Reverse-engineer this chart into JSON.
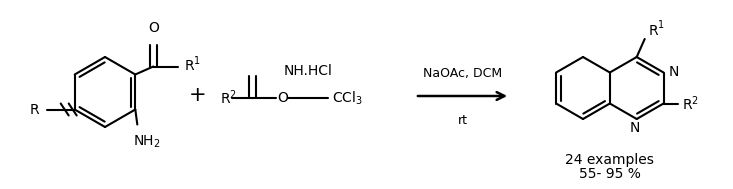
{
  "background_color": "#ffffff",
  "line_color": "#000000",
  "lw": 1.5,
  "figsize": [
    7.33,
    1.89
  ],
  "dpi": 100,
  "arrow_label_top": "NaOAc, DCM",
  "arrow_label_bottom": "rt",
  "product_label1": "24 examples",
  "product_label2": "55- 95 %",
  "font_size": 9
}
